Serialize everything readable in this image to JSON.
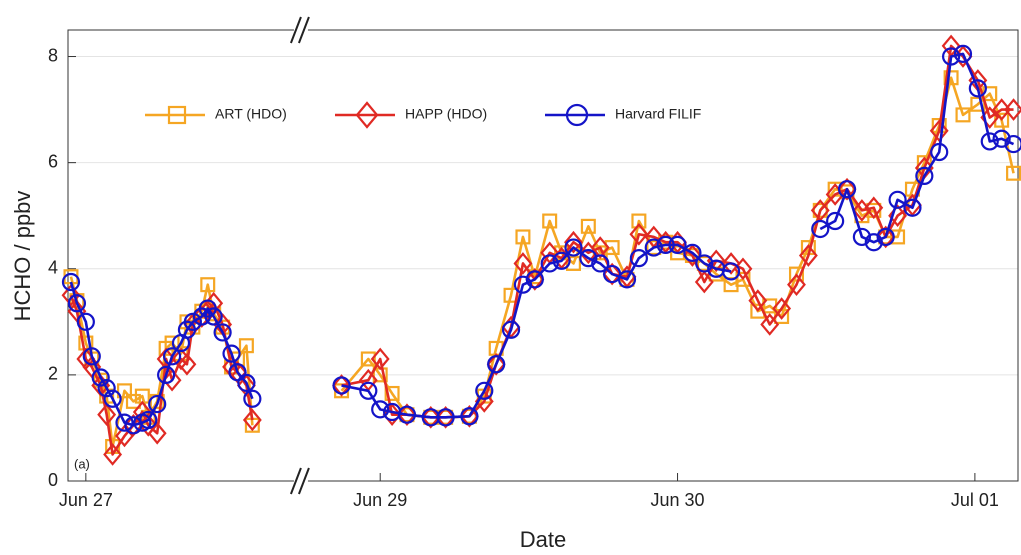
{
  "chart_data": {
    "type": "line",
    "x_label": "Date",
    "y_label": "HCHO / ppbv",
    "panel_label": "(a)",
    "x": [
      26.95,
      26.97,
      27.0,
      27.02,
      27.05,
      27.07,
      27.09,
      27.13,
      27.16,
      27.19,
      27.21,
      27.24,
      27.27,
      27.29,
      27.32,
      27.34,
      27.36,
      27.39,
      27.41,
      27.43,
      27.46,
      27.49,
      27.51,
      27.54,
      27.56,
      28.87,
      28.96,
      29.0,
      29.04,
      29.09,
      29.17,
      29.22,
      29.3,
      29.35,
      29.39,
      29.44,
      29.48,
      29.52,
      29.57,
      29.61,
      29.65,
      29.7,
      29.74,
      29.78,
      29.83,
      29.87,
      29.92,
      29.96,
      30.0,
      30.05,
      30.09,
      30.13,
      30.18,
      30.22,
      30.27,
      30.31,
      30.35,
      30.4,
      30.44,
      30.48,
      30.53,
      30.57,
      30.62,
      30.66,
      30.7,
      30.74,
      30.79,
      30.83,
      30.88,
      30.92,
      30.96,
      31.01,
      31.05,
      31.09,
      31.13
    ],
    "series": [
      {
        "name": "ART (HDO)",
        "color": "#f5a623",
        "marker": "square",
        "values": [
          3.85,
          3.4,
          2.6,
          2.3,
          1.9,
          1.6,
          0.65,
          1.7,
          1.5,
          1.6,
          1.2,
          1.5,
          2.5,
          2.6,
          2.4,
          3.0,
          2.9,
          3.2,
          3.7,
          3.15,
          2.9,
          2.15,
          2.3,
          2.55,
          1.05,
          1.7,
          2.3,
          2.0,
          1.65,
          1.25,
          1.2,
          1.2,
          1.22,
          1.6,
          2.5,
          3.5,
          4.6,
          3.85,
          4.9,
          4.3,
          4.1,
          4.8,
          4.3,
          4.4,
          3.8,
          4.9,
          4.4,
          4.5,
          4.3,
          4.25,
          4.1,
          3.9,
          3.7,
          3.8,
          3.2,
          3.3,
          3.1,
          3.9,
          4.4,
          5.1,
          5.5,
          5.45,
          5.0,
          5.1,
          4.6,
          4.6,
          5.5,
          6.0,
          6.7,
          7.6,
          6.9,
          7.1,
          7.3,
          6.8,
          5.8
        ]
      },
      {
        "name": "HAPP (HDO)",
        "color": "#e02a24",
        "marker": "diamond",
        "values": [
          3.5,
          3.2,
          2.3,
          2.15,
          1.8,
          1.25,
          0.5,
          0.85,
          1.05,
          1.3,
          1.05,
          0.9,
          2.3,
          1.9,
          2.3,
          2.2,
          2.95,
          3.1,
          3.2,
          3.35,
          2.95,
          2.15,
          2.05,
          1.8,
          1.15,
          1.8,
          1.9,
          2.3,
          1.25,
          1.25,
          1.2,
          1.2,
          1.22,
          1.5,
          2.2,
          2.9,
          4.1,
          3.8,
          4.3,
          4.2,
          4.5,
          4.3,
          4.4,
          3.9,
          3.85,
          4.65,
          4.6,
          4.5,
          4.5,
          4.25,
          3.75,
          4.15,
          4.1,
          4.0,
          3.4,
          2.95,
          3.25,
          3.7,
          4.25,
          5.1,
          5.4,
          5.5,
          5.1,
          5.15,
          4.6,
          5.0,
          5.2,
          5.9,
          6.6,
          8.2,
          8.0,
          7.55,
          6.85,
          7.0,
          7.0
        ]
      },
      {
        "name": "Harvard FILIF",
        "color": "#1414c8",
        "marker": "circle",
        "values": [
          3.75,
          3.35,
          3.0,
          2.35,
          1.95,
          1.75,
          1.55,
          1.1,
          1.05,
          1.1,
          1.15,
          1.45,
          2.0,
          2.35,
          2.6,
          2.85,
          3.0,
          3.1,
          3.25,
          3.1,
          2.8,
          2.4,
          2.05,
          1.85,
          1.55,
          1.8,
          1.7,
          1.35,
          1.3,
          1.25,
          1.2,
          1.2,
          1.22,
          1.7,
          2.2,
          2.85,
          3.7,
          3.8,
          4.1,
          4.15,
          4.4,
          4.2,
          4.1,
          3.9,
          3.8,
          4.2,
          4.4,
          4.45,
          4.45,
          4.3,
          4.1,
          4.0,
          3.95,
          null,
          null,
          null,
          null,
          null,
          null,
          4.75,
          4.9,
          5.5,
          4.6,
          4.5,
          4.6,
          5.3,
          5.15,
          5.75,
          6.2,
          8.0,
          8.05,
          7.4,
          6.4,
          6.45,
          6.35
        ]
      }
    ],
    "xlim": [
      26.94,
      31.145
    ],
    "x_break": [
      27.72,
      28.73
    ],
    "xticks": [
      {
        "value": 27,
        "label": "Jun 27"
      },
      {
        "value": 29,
        "label": "Jun 29"
      },
      {
        "value": 30,
        "label": "Jun 30"
      },
      {
        "value": 31,
        "label": "Jul 01"
      }
    ],
    "ylim": [
      0,
      8.5
    ],
    "yticks": [
      0,
      2,
      4,
      6,
      8
    ],
    "grid": true
  }
}
